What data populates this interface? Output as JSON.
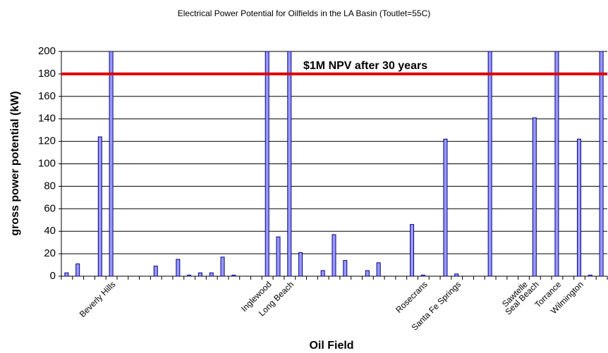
{
  "chart_data": {
    "type": "bar",
    "title": "Electrical Power Potential for Oilfields in the LA Basin (Toutlet=55C)",
    "xlabel": "Oil Field",
    "ylabel": "gross power potential (kW)",
    "categories": [
      null,
      null,
      null,
      null,
      "Beverly Hills",
      null,
      null,
      null,
      null,
      null,
      null,
      null,
      null,
      null,
      null,
      null,
      null,
      null,
      "Inglewood",
      null,
      "Long Beach",
      null,
      null,
      null,
      null,
      null,
      null,
      null,
      null,
      null,
      null,
      null,
      "Rosecrans",
      null,
      null,
      "Santa Fe Springs",
      null,
      null,
      null,
      null,
      null,
      "Sawtelle",
      "Seal Beach",
      null,
      "Torrance",
      null,
      "Wilmington",
      null,
      null
    ],
    "values": [
      3,
      11,
      0,
      124,
      200,
      0,
      0,
      0,
      9,
      0,
      15,
      1,
      3,
      3,
      17,
      1,
      0,
      0,
      200,
      35,
      200,
      21,
      0,
      5,
      37,
      14,
      0,
      5,
      12,
      0,
      0,
      46,
      1,
      0,
      122,
      2,
      0,
      0,
      200,
      0,
      0,
      0,
      141,
      0,
      200,
      0,
      122,
      1,
      200
    ],
    "color": "#9999ff",
    "ylim": [
      0,
      200
    ],
    "yticks": [
      0,
      20,
      40,
      60,
      80,
      100,
      120,
      140,
      160,
      180,
      200
    ],
    "grid": true,
    "threshold": {
      "value": 180,
      "label": "$1M NPV after 30 years",
      "color": "#e00000"
    }
  }
}
